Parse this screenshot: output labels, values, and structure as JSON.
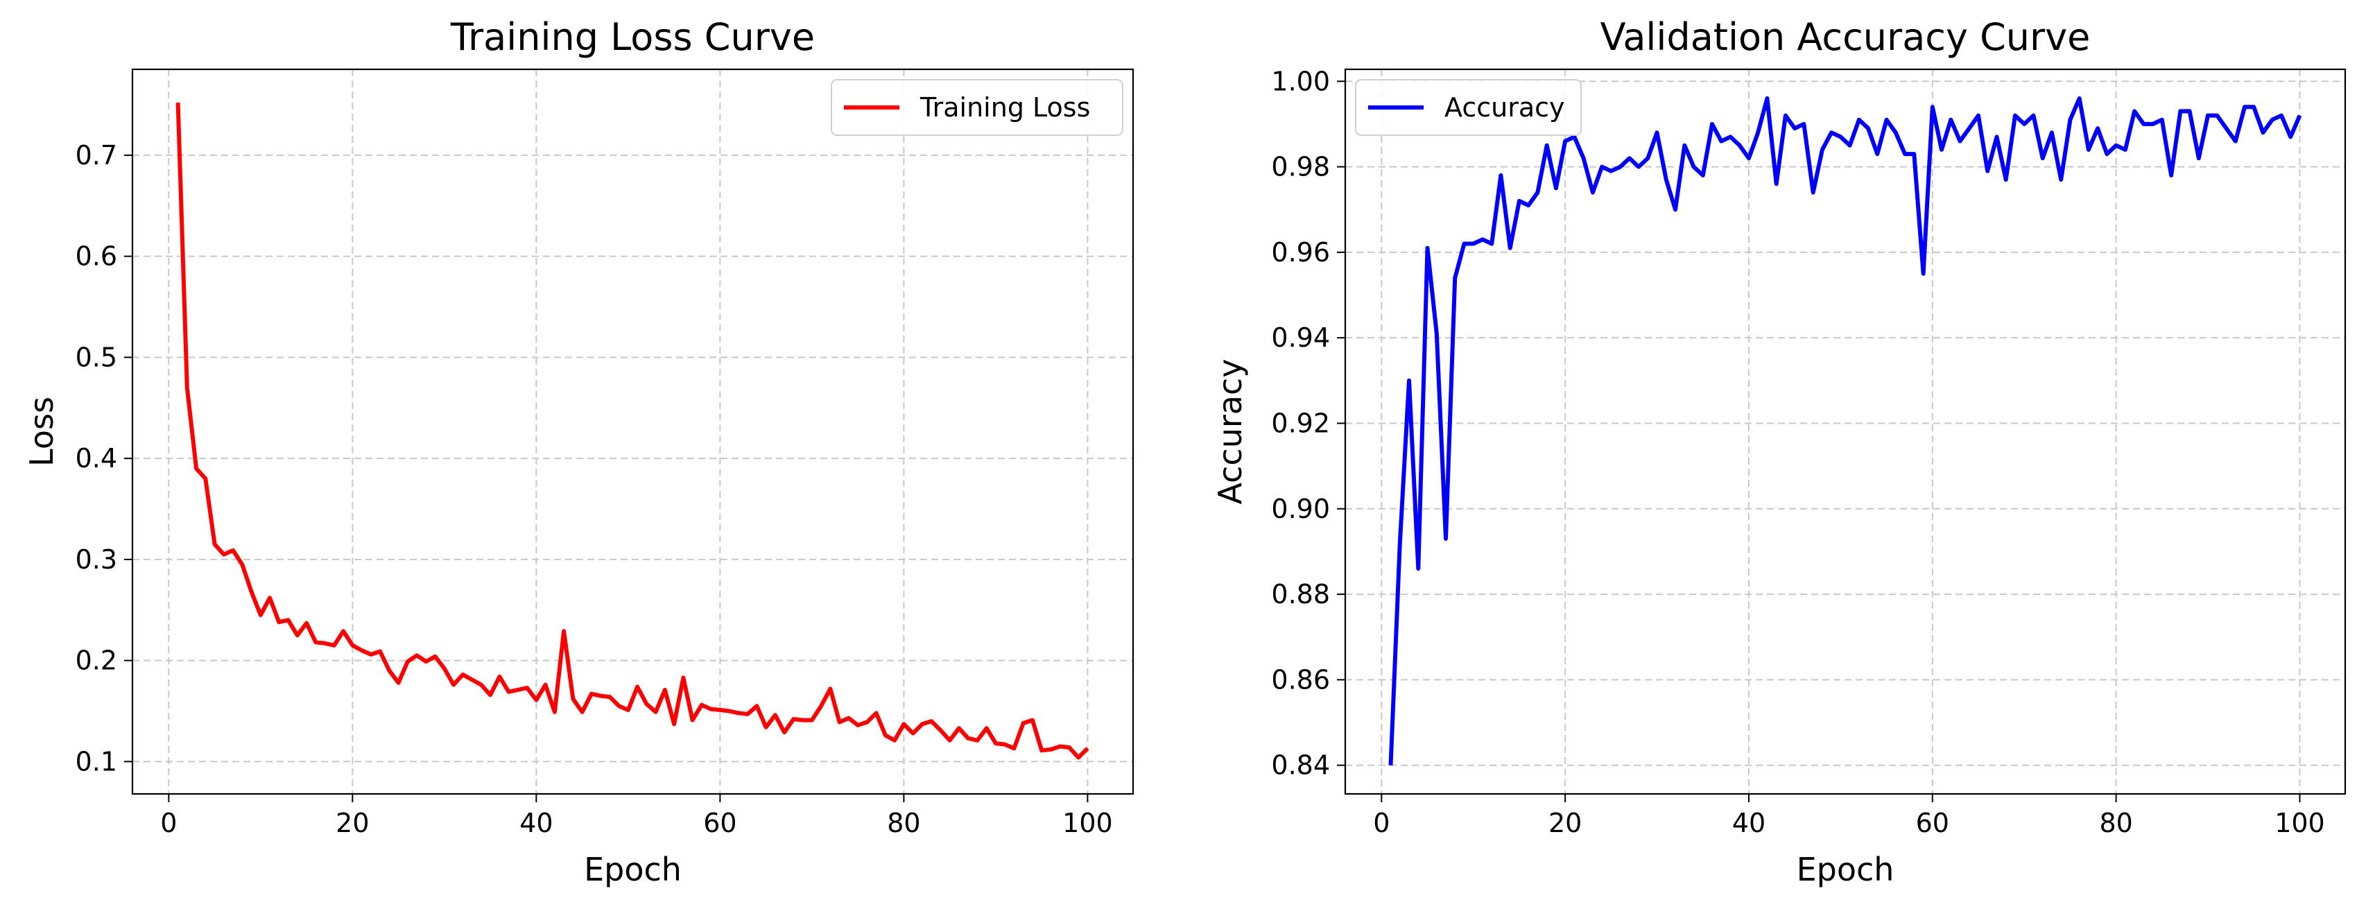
{
  "chart_data": [
    {
      "type": "line",
      "title": "Training Loss Curve",
      "xlabel": "Epoch",
      "ylabel": "Loss",
      "xlim": [
        -3.95,
        104.95
      ],
      "ylim": [
        0.068,
        0.785
      ],
      "xticks": [
        0,
        20,
        40,
        60,
        80,
        100
      ],
      "yticks": [
        0.1,
        0.2,
        0.3,
        0.4,
        0.5,
        0.6,
        0.7
      ],
      "xtick_labels": [
        "0",
        "20",
        "40",
        "60",
        "80",
        "100"
      ],
      "ytick_labels": [
        "0.1",
        "0.2",
        "0.3",
        "0.4",
        "0.5",
        "0.6",
        "0.7"
      ],
      "grid": true,
      "legend_position": "upper-right",
      "series": [
        {
          "name": "Training Loss",
          "color": "#ff0000",
          "x": [
            1,
            2,
            3,
            4,
            5,
            6,
            7,
            8,
            9,
            10,
            11,
            12,
            13,
            14,
            15,
            16,
            17,
            18,
            19,
            20,
            21,
            22,
            23,
            24,
            25,
            26,
            27,
            28,
            29,
            30,
            31,
            32,
            33,
            34,
            35,
            36,
            37,
            38,
            39,
            40,
            41,
            42,
            43,
            44,
            45,
            46,
            47,
            48,
            49,
            50,
            51,
            52,
            53,
            54,
            55,
            56,
            57,
            58,
            59,
            60,
            61,
            62,
            63,
            64,
            65,
            66,
            67,
            68,
            69,
            70,
            71,
            72,
            73,
            74,
            75,
            76,
            77,
            78,
            79,
            80,
            81,
            82,
            83,
            84,
            85,
            86,
            87,
            88,
            89,
            90,
            91,
            92,
            93,
            94,
            95,
            96,
            97,
            98,
            99,
            100
          ],
          "values": [
            0.752,
            0.47,
            0.39,
            0.38,
            0.315,
            0.305,
            0.309,
            0.295,
            0.268,
            0.245,
            0.262,
            0.238,
            0.24,
            0.225,
            0.237,
            0.218,
            0.217,
            0.215,
            0.229,
            0.215,
            0.21,
            0.206,
            0.209,
            0.19,
            0.178,
            0.199,
            0.205,
            0.199,
            0.204,
            0.192,
            0.176,
            0.186,
            0.181,
            0.176,
            0.166,
            0.184,
            0.169,
            0.171,
            0.173,
            0.161,
            0.176,
            0.149,
            0.229,
            0.162,
            0.149,
            0.167,
            0.165,
            0.164,
            0.155,
            0.151,
            0.174,
            0.157,
            0.149,
            0.171,
            0.137,
            0.183,
            0.141,
            0.156,
            0.152,
            0.151,
            0.15,
            0.148,
            0.147,
            0.155,
            0.134,
            0.146,
            0.129,
            0.142,
            0.141,
            0.141,
            0.155,
            0.172,
            0.139,
            0.143,
            0.136,
            0.139,
            0.148,
            0.126,
            0.121,
            0.137,
            0.128,
            0.137,
            0.14,
            0.131,
            0.121,
            0.133,
            0.123,
            0.121,
            0.133,
            0.118,
            0.117,
            0.113,
            0.138,
            0.141,
            0.111,
            0.112,
            0.115,
            0.114,
            0.104,
            0.113
          ]
        }
      ]
    },
    {
      "type": "line",
      "title": "Validation Accuracy Curve",
      "xlabel": "Epoch",
      "ylabel": "Accuracy",
      "xlim": [
        -3.95,
        104.95
      ],
      "ylim": [
        0.8333,
        1.0028
      ],
      "xticks": [
        0,
        20,
        40,
        60,
        80,
        100
      ],
      "yticks": [
        0.84,
        0.86,
        0.88,
        0.9,
        0.92,
        0.94,
        0.96,
        0.98,
        1.0
      ],
      "xtick_labels": [
        "0",
        "20",
        "40",
        "60",
        "80",
        "100"
      ],
      "ytick_labels": [
        "0.84",
        "0.86",
        "0.88",
        "0.90",
        "0.92",
        "0.94",
        "0.96",
        "0.98",
        "1.00"
      ],
      "grid": true,
      "legend_position": "upper-left",
      "series": [
        {
          "name": "Accuracy",
          "color": "#0000ff",
          "x": [
            1,
            2,
            3,
            4,
            5,
            6,
            7,
            8,
            9,
            10,
            11,
            12,
            13,
            14,
            15,
            16,
            17,
            18,
            19,
            20,
            21,
            22,
            23,
            24,
            25,
            26,
            27,
            28,
            29,
            30,
            31,
            32,
            33,
            34,
            35,
            36,
            37,
            38,
            39,
            40,
            41,
            42,
            43,
            44,
            45,
            46,
            47,
            48,
            49,
            50,
            51,
            52,
            53,
            54,
            55,
            56,
            57,
            58,
            59,
            60,
            61,
            62,
            63,
            64,
            65,
            66,
            67,
            68,
            69,
            70,
            71,
            72,
            73,
            74,
            75,
            76,
            77,
            78,
            79,
            80,
            81,
            82,
            83,
            84,
            85,
            86,
            87,
            88,
            89,
            90,
            91,
            92,
            93,
            94,
            95,
            96,
            97,
            98,
            99,
            100
          ],
          "values": [
            0.84,
            0.892,
            0.93,
            0.886,
            0.961,
            0.941,
            0.893,
            0.954,
            0.962,
            0.962,
            0.963,
            0.962,
            0.978,
            0.961,
            0.972,
            0.971,
            0.974,
            0.985,
            0.975,
            0.986,
            0.987,
            0.982,
            0.974,
            0.98,
            0.979,
            0.98,
            0.982,
            0.98,
            0.982,
            0.988,
            0.977,
            0.97,
            0.985,
            0.98,
            0.978,
            0.99,
            0.986,
            0.987,
            0.985,
            0.982,
            0.988,
            0.996,
            0.976,
            0.992,
            0.989,
            0.99,
            0.974,
            0.984,
            0.988,
            0.987,
            0.985,
            0.991,
            0.989,
            0.983,
            0.991,
            0.988,
            0.983,
            0.983,
            0.955,
            0.994,
            0.984,
            0.991,
            0.986,
            0.989,
            0.992,
            0.979,
            0.987,
            0.977,
            0.992,
            0.99,
            0.992,
            0.982,
            0.988,
            0.977,
            0.991,
            0.996,
            0.984,
            0.989,
            0.983,
            0.985,
            0.984,
            0.993,
            0.99,
            0.99,
            0.991,
            0.978,
            0.993,
            0.993,
            0.982,
            0.992,
            0.992,
            0.989,
            0.986,
            0.994,
            0.994,
            0.988,
            0.991,
            0.992,
            0.987,
            0.992
          ]
        }
      ]
    }
  ]
}
